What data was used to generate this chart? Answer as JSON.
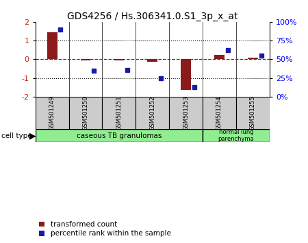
{
  "title": "GDS4256 / Hs.306341.0.S1_3p_x_at",
  "samples": [
    "GSM501249",
    "GSM501250",
    "GSM501251",
    "GSM501252",
    "GSM501253",
    "GSM501254",
    "GSM501255"
  ],
  "transformed_count": [
    1.45,
    -0.08,
    -0.07,
    -0.12,
    -1.65,
    0.22,
    0.08
  ],
  "percentile_rank": [
    90,
    35,
    36,
    25,
    13,
    62,
    55
  ],
  "ylim_left": [
    -2,
    2
  ],
  "ylim_right": [
    0,
    100
  ],
  "yticks_left": [
    -2,
    -1,
    0,
    1,
    2
  ],
  "yticks_right": [
    0,
    25,
    50,
    75,
    100
  ],
  "yticklabels_right": [
    "0%",
    "25%",
    "50%",
    "75%",
    "100%"
  ],
  "bar_color": "#8B1A1A",
  "dot_color": "#1a1aaa",
  "background_color": "#ffffff",
  "zero_line_color": "#cc0000",
  "dot_size": 5,
  "bar_width": 0.3,
  "legend_items": [
    {
      "label": "transformed count",
      "color": "#8B1A1A"
    },
    {
      "label": "percentile rank within the sample",
      "color": "#1a1aaa"
    }
  ]
}
